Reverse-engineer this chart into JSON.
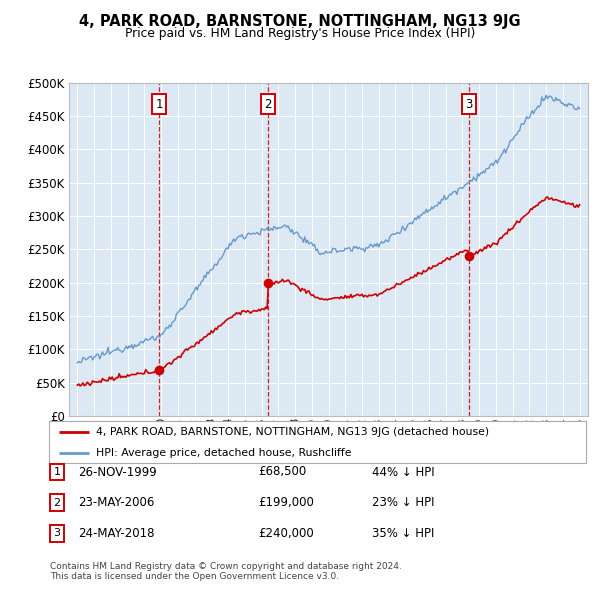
{
  "title": "4, PARK ROAD, BARNSTONE, NOTTINGHAM, NG13 9JG",
  "subtitle": "Price paid vs. HM Land Registry's House Price Index (HPI)",
  "sale_dates_num": [
    1999.9,
    2006.39,
    2018.39
  ],
  "sale_prices": [
    68500,
    199000,
    240000
  ],
  "sale_labels": [
    "1",
    "2",
    "3"
  ],
  "sale_dates_str": [
    "26-NOV-1999",
    "23-MAY-2006",
    "24-MAY-2018"
  ],
  "sale_prices_str": [
    "£68,500",
    "£199,000",
    "£240,000"
  ],
  "sale_hpi_str": [
    "44% ↓ HPI",
    "23% ↓ HPI",
    "35% ↓ HPI"
  ],
  "legend_red": "4, PARK ROAD, BARNSTONE, NOTTINGHAM, NG13 9JG (detached house)",
  "legend_blue": "HPI: Average price, detached house, Rushcliffe",
  "footnote1": "Contains HM Land Registry data © Crown copyright and database right 2024.",
  "footnote2": "This data is licensed under the Open Government Licence v3.0.",
  "red_color": "#cc0000",
  "blue_color": "#6699cc",
  "plot_bg": "#dce9f5",
  "ylim_max": 500000,
  "ytick_step": 50000
}
